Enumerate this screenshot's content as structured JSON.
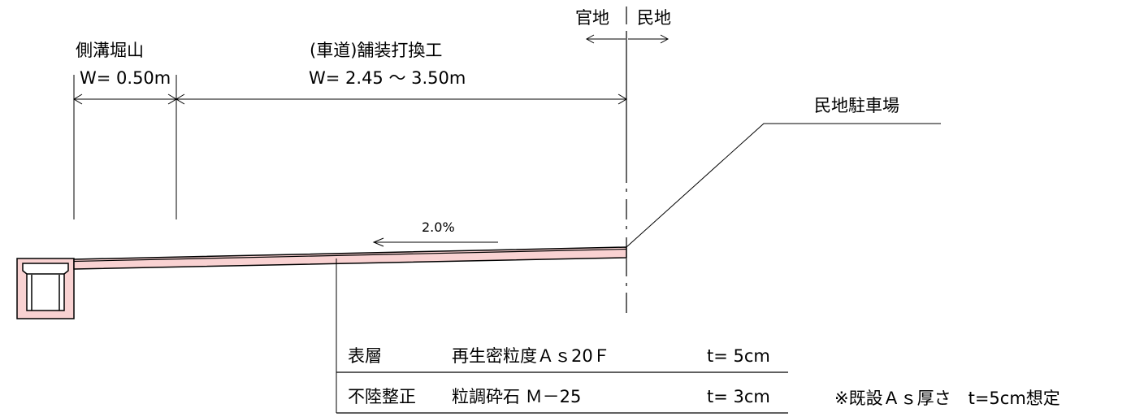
{
  "colors": {
    "line": "#000000",
    "fill_pink": "#f9d2d2",
    "background": "#ffffff"
  },
  "boundary": {
    "left_label": "官地",
    "right_label": "民地"
  },
  "dimensions": {
    "gutter": {
      "title": "側溝堀山",
      "width": "W= 0.50m"
    },
    "road": {
      "title": "(車道)舗装打換工",
      "width": "W= 2.45 ～ 3.50m"
    }
  },
  "parking_label": "民地駐車場",
  "slope_label": "2.0%",
  "layers": [
    {
      "name": "表層",
      "material": "再生密粒度Ａｓ20Ｆ",
      "thickness": "t= 5cm"
    },
    {
      "name": "不陸整正",
      "material": "粒調砕石 Ｍ－25",
      "thickness": "t= 3cm"
    }
  ],
  "note": "※既設Ａｓ厚さ　t=5cm想定"
}
